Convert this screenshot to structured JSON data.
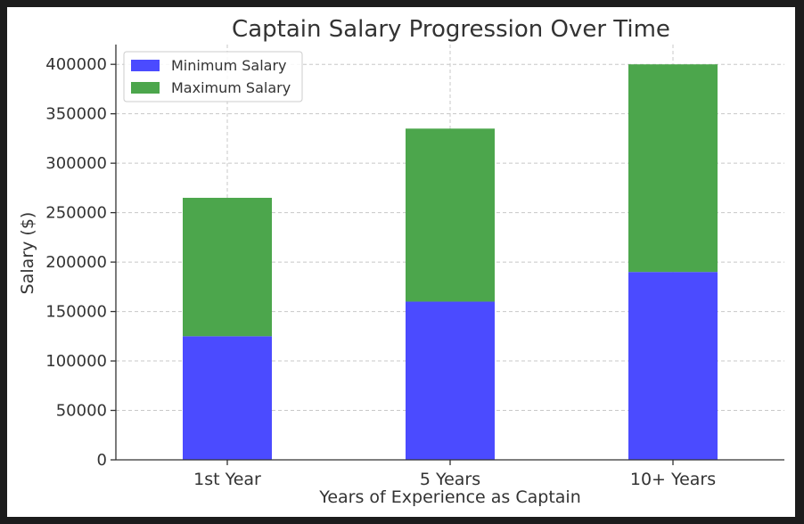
{
  "chart_data": {
    "type": "bar",
    "stacked": true,
    "title": "Captain Salary Progression Over Time",
    "xlabel": "Years of Experience as Captain",
    "ylabel": "Salary ($)",
    "categories": [
      "1st Year",
      "5 Years",
      "10+ Years"
    ],
    "series": [
      {
        "name": "Minimum Salary",
        "color": "#4b4bff",
        "values": [
          125000,
          160000,
          190000
        ]
      },
      {
        "name": "Maximum Salary",
        "color": "#4ca64c",
        "values": [
          140000,
          175000,
          210000
        ]
      }
    ],
    "ylim": [
      0,
      420000
    ],
    "yticks": [
      0,
      50000,
      100000,
      150000,
      200000,
      250000,
      300000,
      350000,
      400000
    ],
    "grid": true,
    "legend": "top-left"
  }
}
